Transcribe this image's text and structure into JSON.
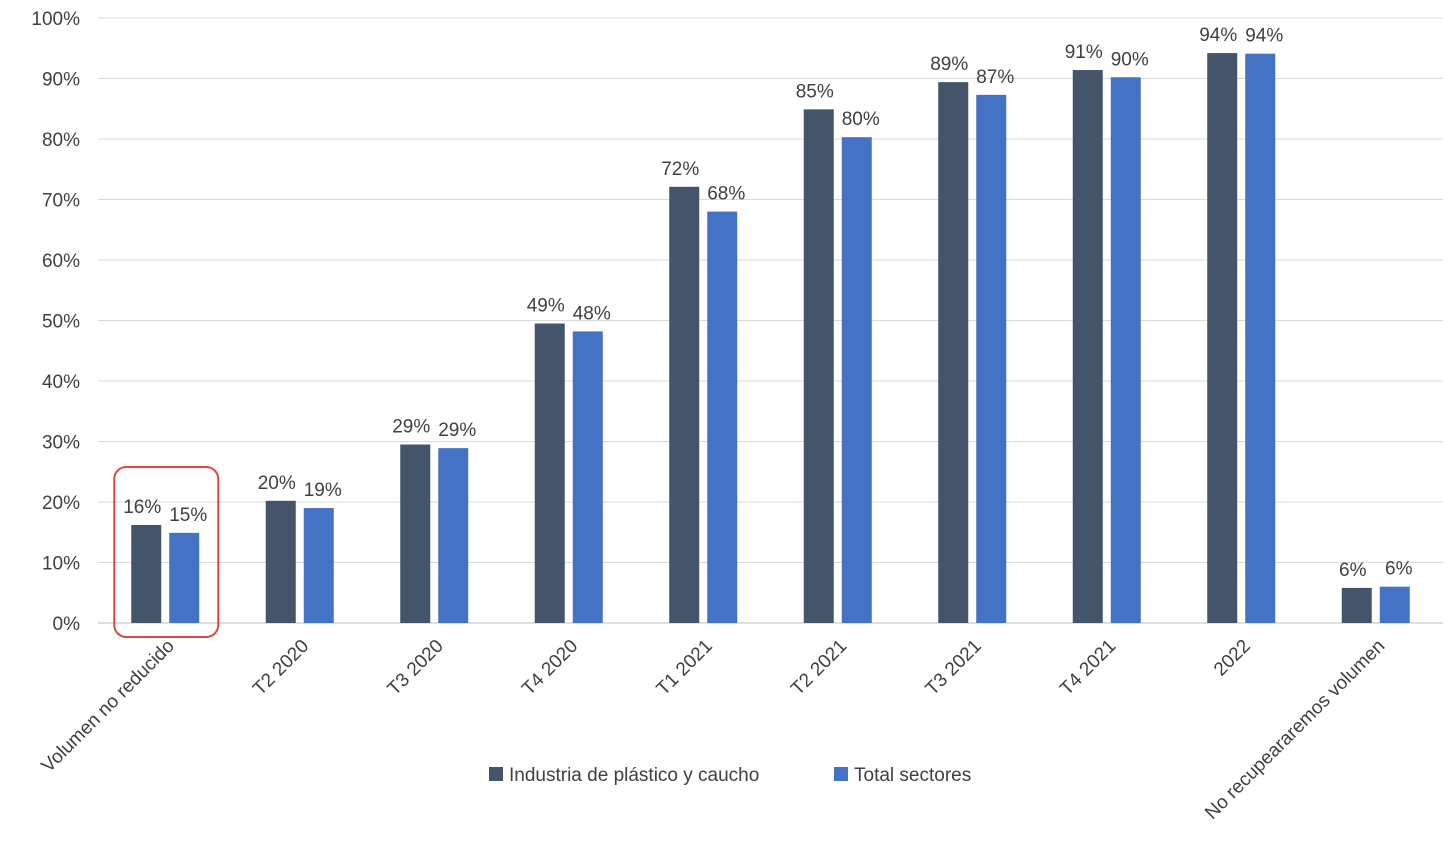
{
  "chart_data": {
    "type": "bar",
    "categories": [
      "Volumen no reducido",
      "T2 2020",
      "T3 2020",
      "T4 2020",
      "T1 2021",
      "T2 2021",
      "T3 2021",
      "T4 2021",
      "2022",
      "No recupeararemos volumen"
    ],
    "series": [
      {
        "name": "Industria de plástico y caucho",
        "color": "#44546a",
        "values": [
          16.2,
          20.2,
          29.5,
          49.5,
          72.1,
          84.9,
          89.4,
          91.4,
          94.2,
          5.8
        ],
        "labels": [
          "16%",
          "20%",
          "29%",
          "49%",
          "72%",
          "85%",
          "89%",
          "91%",
          "94%",
          "6%"
        ]
      },
      {
        "name": "Total sectores",
        "color": "#4472c4",
        "values": [
          14.9,
          19.0,
          28.9,
          48.2,
          68.0,
          80.3,
          87.3,
          90.2,
          94.1,
          6.0
        ],
        "labels": [
          "15%",
          "19%",
          "29%",
          "48%",
          "68%",
          "80%",
          "87%",
          "90%",
          "94%",
          "6%"
        ]
      }
    ],
    "title": "",
    "xlabel": "",
    "ylabel": "",
    "ylim": [
      0,
      100
    ],
    "yticks": [
      "0%",
      "10%",
      "20%",
      "30%",
      "40%",
      "50%",
      "60%",
      "70%",
      "80%",
      "90%",
      "100%"
    ],
    "grid": true,
    "legend_position": "bottom",
    "highlight": {
      "category_index": 0,
      "color": "#e0483e"
    }
  }
}
